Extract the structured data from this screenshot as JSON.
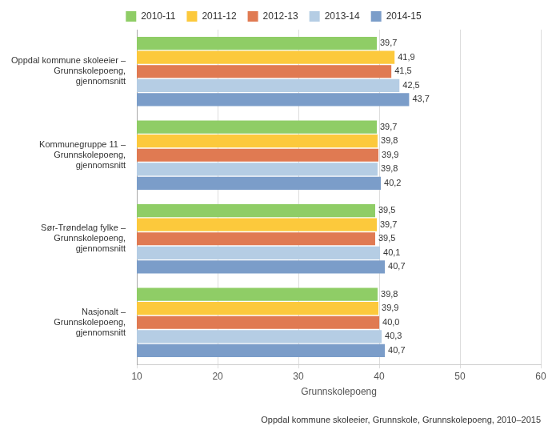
{
  "chart_data": {
    "type": "bar",
    "orientation": "horizontal",
    "subtitle": "Oppdal kommune skoleeier, Grunnskole, Grunnskolepoeng, 2010–2015",
    "x_label": "Grunnskolepoeng",
    "categories": [
      "Oppdal kommune skoleeier – Grunnskolepoeng, gjennomsnitt",
      "Kommunegruppe 11 – Grunnskolepoeng, gjennomsnitt",
      "Sør-Trøndelag fylke – Grunnskolepoeng, gjennomsnitt",
      "Nasjonalt – Grunnskolepoeng, gjennomsnitt"
    ],
    "series": [
      {
        "name": "2010-11",
        "color": "#8fcd66",
        "values": [
          39.7,
          39.7,
          39.5,
          39.8
        ],
        "value_labels": [
          "39,7",
          "39,7",
          "39,5",
          "39,8"
        ]
      },
      {
        "name": "2011-12",
        "color": "#fcc93c",
        "values": [
          41.9,
          39.8,
          39.7,
          39.9
        ],
        "value_labels": [
          "41,9",
          "39,8",
          "39,7",
          "39,9"
        ]
      },
      {
        "name": "2012-13",
        "color": "#e07a52",
        "values": [
          41.5,
          39.9,
          39.5,
          40.0
        ],
        "value_labels": [
          "41,5",
          "39,9",
          "39,5",
          "40,0"
        ]
      },
      {
        "name": "2013-14",
        "color": "#b5cde4",
        "values": [
          42.5,
          39.8,
          40.1,
          40.3
        ],
        "value_labels": [
          "42,5",
          "39,8",
          "40,1",
          "40,3"
        ]
      },
      {
        "name": "2014-15",
        "color": "#7b9dc9",
        "values": [
          43.7,
          40.2,
          40.7,
          40.7
        ],
        "value_labels": [
          "43,7",
          "40,2",
          "40,7",
          "40,7"
        ]
      }
    ],
    "xlim": [
      10,
      60
    ],
    "xticks": [
      10,
      20,
      30,
      40,
      50,
      60
    ],
    "grid": true,
    "legend": "top",
    "data_labels": true
  }
}
